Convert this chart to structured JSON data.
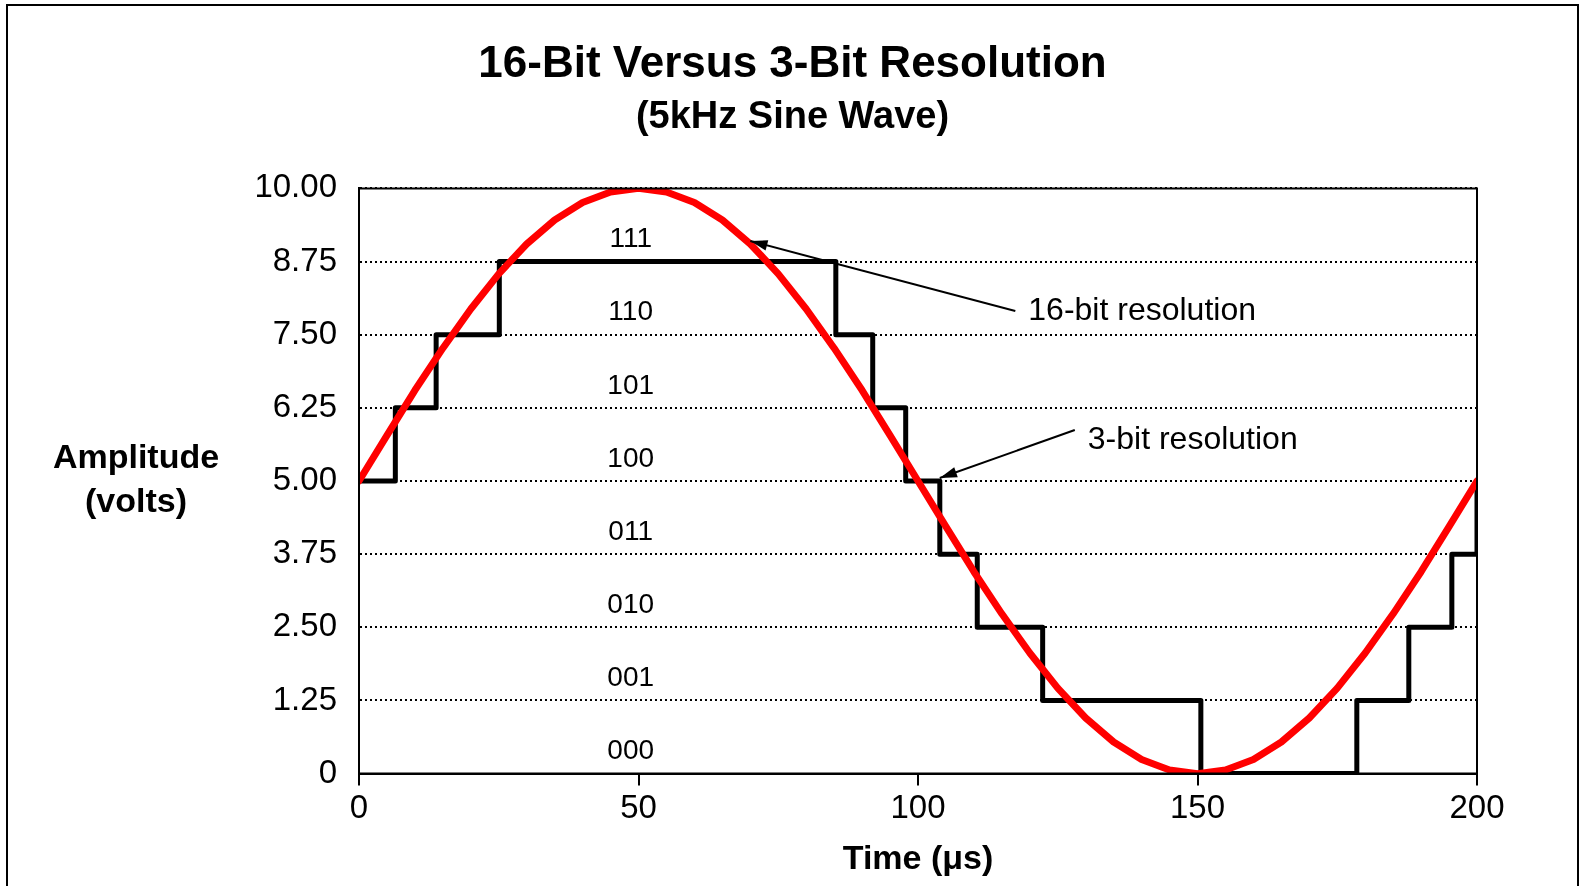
{
  "chart_data": {
    "type": "line",
    "title": "16-Bit Versus 3-Bit Resolution",
    "subtitle": "(5kHz Sine Wave)",
    "xlabel": "Time (μs)",
    "ylabel": "Amplitude\n(volts)",
    "series": [
      {
        "color": "#ff0000",
        "x": [
          0,
          5,
          10,
          15,
          20,
          25,
          30,
          35,
          40,
          45,
          50,
          55,
          60,
          65,
          70,
          75,
          80,
          85,
          90,
          95,
          100,
          105,
          110,
          115,
          120,
          125,
          130,
          135,
          140,
          145,
          150,
          155,
          160,
          165,
          170,
          175,
          180,
          185,
          190,
          195,
          200
        ],
        "values": [
          5,
          5.78,
          6.55,
          7.27,
          7.94,
          8.54,
          9.05,
          9.46,
          9.76,
          9.94,
          10,
          9.94,
          9.76,
          9.46,
          9.05,
          8.54,
          7.94,
          7.27,
          6.55,
          5.78,
          5,
          4.22,
          3.45,
          2.73,
          2.06,
          1.46,
          0.95,
          0.54,
          0.24,
          0.06,
          0,
          0.06,
          0.24,
          0.54,
          0.95,
          1.46,
          2.06,
          2.73,
          3.45,
          4.22,
          5
        ]
      },
      {
        "type": "step",
        "color": "#000000",
        "x": [
          0,
          6.5,
          13.8,
          25.1,
          85.3,
          91.9,
          97.8,
          103.9,
          110.6,
          122.3,
          150.6,
          178.5,
          187.8,
          195.5,
          200
        ],
        "values": [
          5,
          6.25,
          7.5,
          8.75,
          7.5,
          6.25,
          5,
          3.75,
          2.5,
          1.25,
          0,
          1.25,
          2.5,
          3.75,
          5
        ]
      }
    ],
    "annotations": [
      {
        "text": "16-bit resolution",
        "x": 70,
        "y": 9.05
      },
      {
        "text": "3-bit resolution",
        "x": 103.9,
        "y": 5
      },
      "111",
      "110",
      "101",
      "100",
      "011",
      "010",
      "001",
      "000"
    ],
    "xlim": [
      0,
      200
    ],
    "xticks": [
      0,
      50,
      100,
      150,
      200
    ],
    "ylim": [
      0,
      10
    ],
    "yticks": [
      0,
      {
        "value": 1.25,
        "label": "1.25"
      },
      {
        "value": 2.5,
        "label": "2.50"
      },
      {
        "value": 3.75,
        "label": "3.75"
      },
      {
        "value": 5,
        "label": "5.00"
      },
      {
        "value": 6.25,
        "label": "6.25"
      },
      {
        "value": 7.5,
        "label": "7.50"
      },
      {
        "value": 8.75,
        "label": "8.75"
      },
      {
        "value": 10,
        "label": "10.00"
      }
    ],
    "grid": "y",
    "legend": false,
    "marker": "none",
    "line_style": "solid"
  }
}
